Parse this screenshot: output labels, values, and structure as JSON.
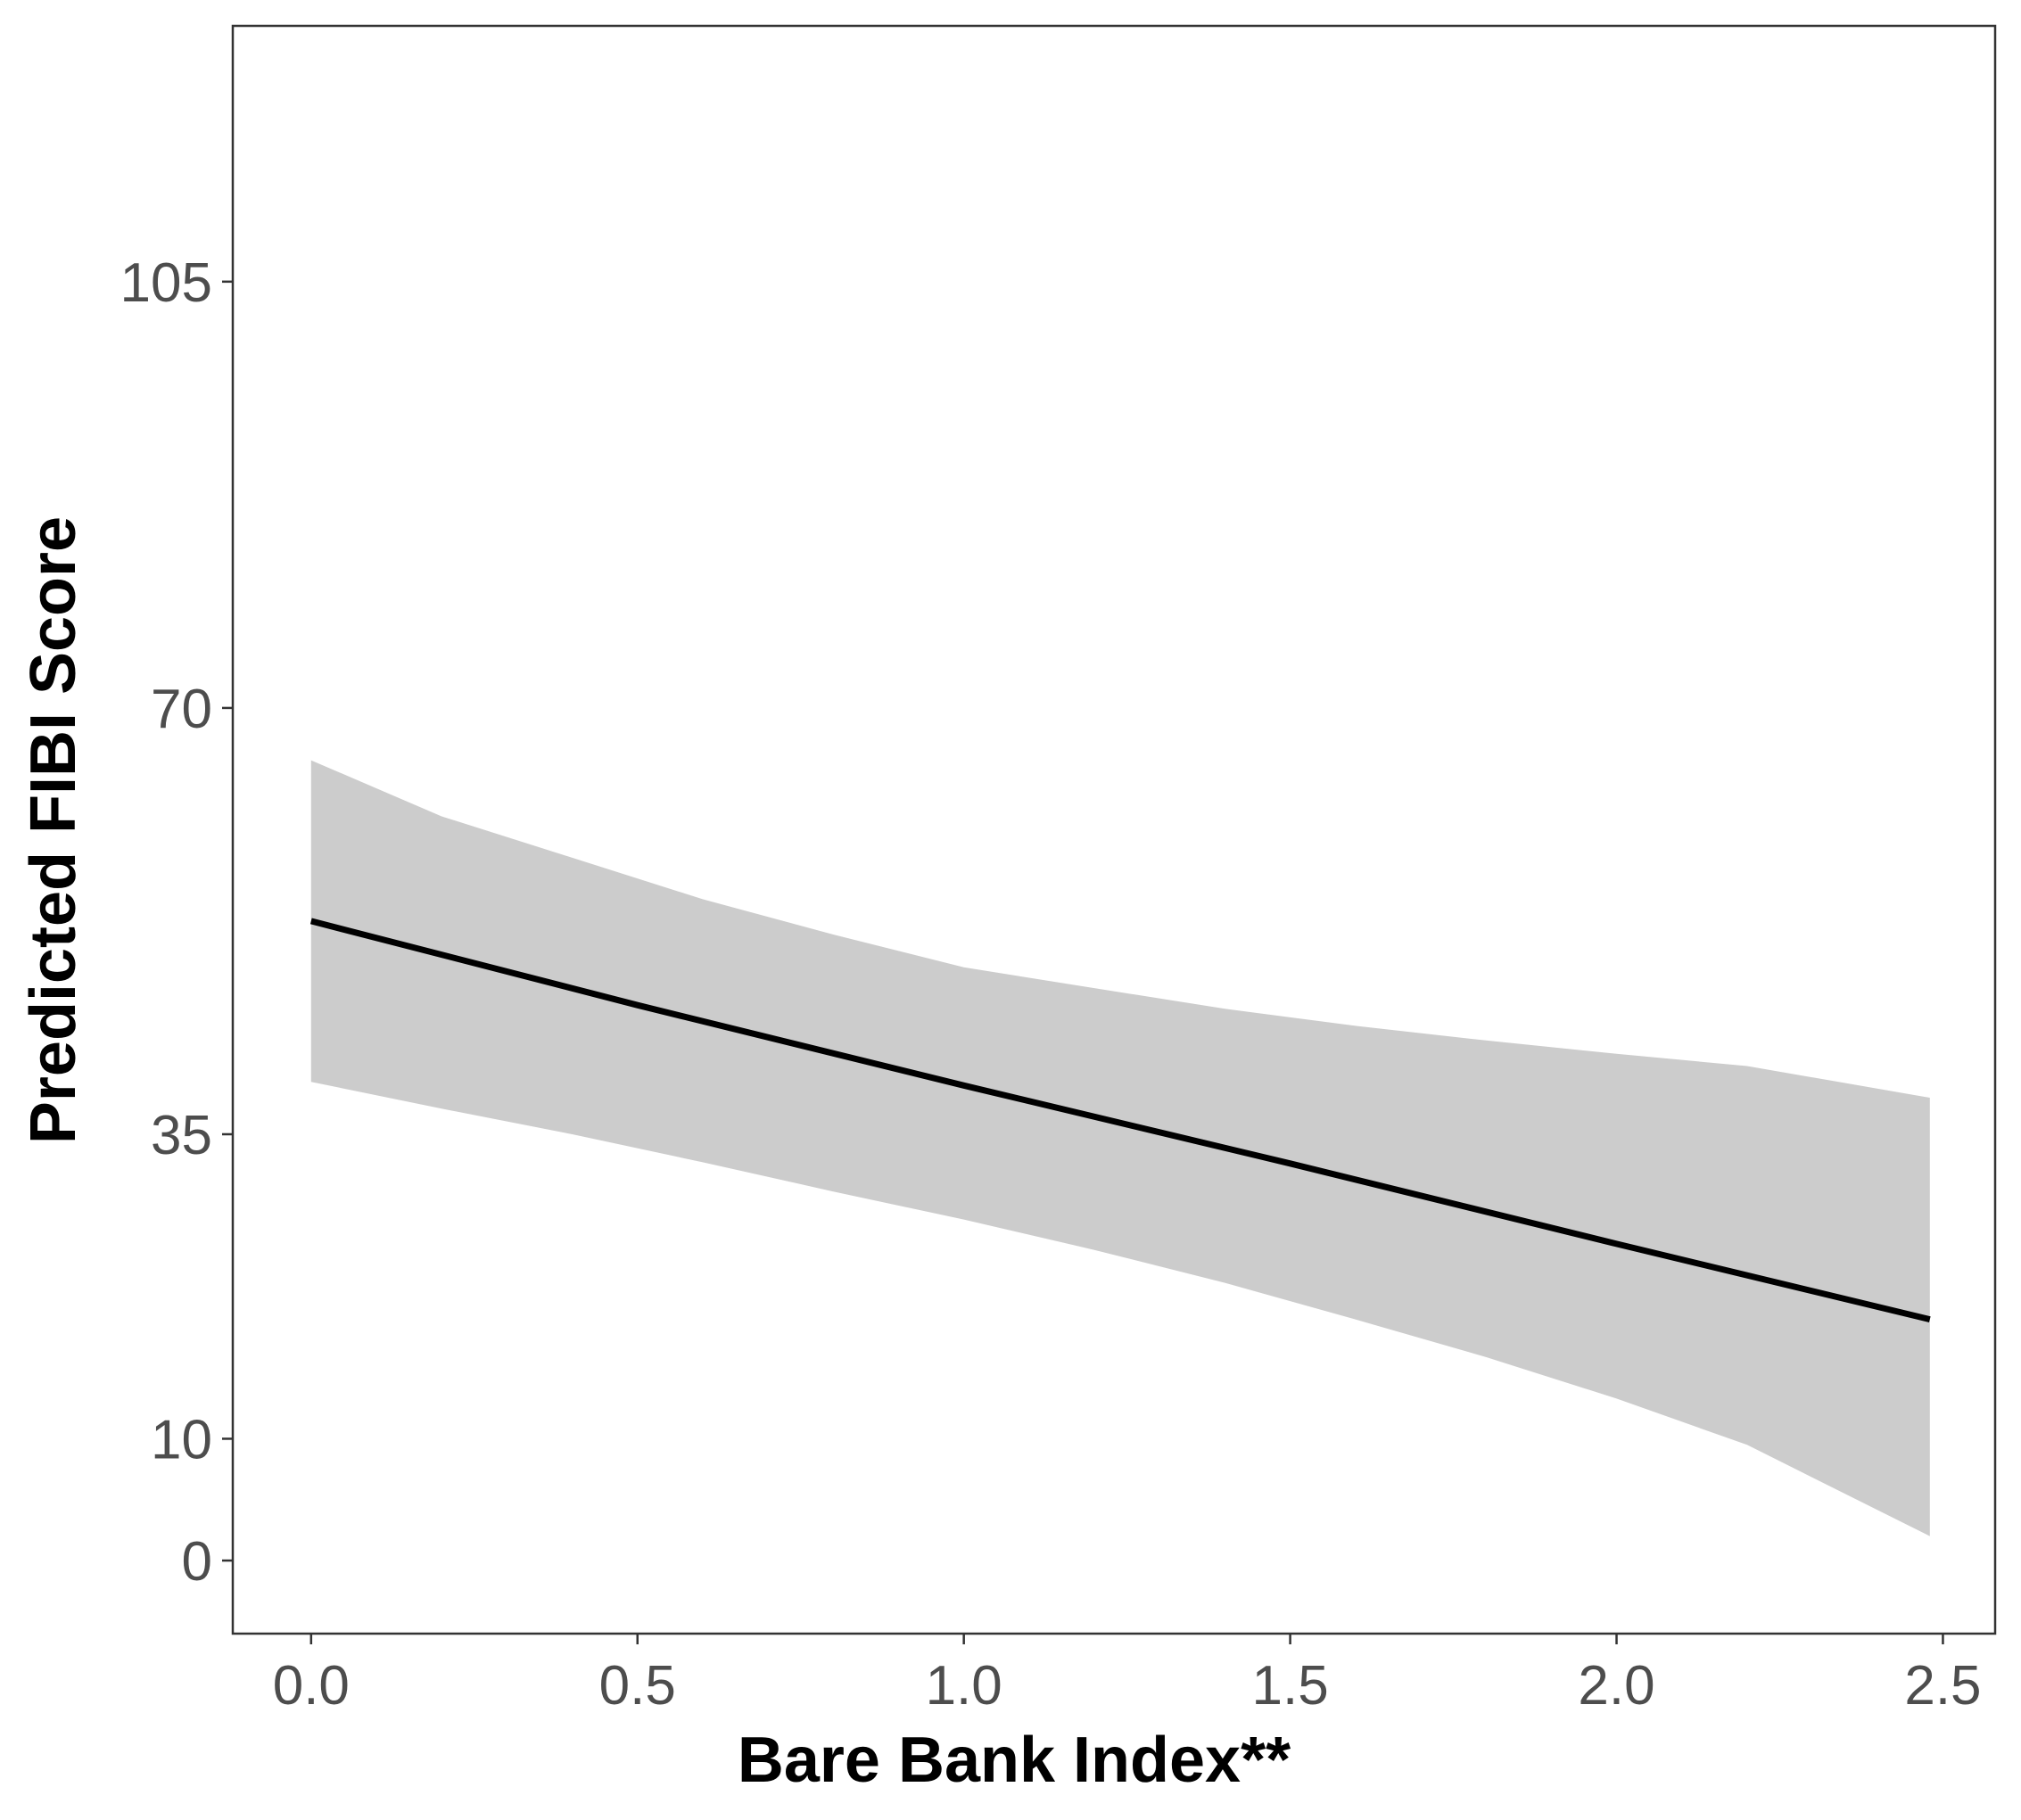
{
  "chart_data": {
    "type": "line",
    "title": "",
    "xlabel": "Bare Bank Index**",
    "ylabel": "Predicted FIBI Score",
    "xlim": [
      -0.12,
      2.58
    ],
    "ylim": [
      -6,
      126
    ],
    "x_ticks": [
      0.0,
      0.5,
      1.0,
      1.5,
      2.0,
      2.5
    ],
    "x_tick_labels": [
      "0.0",
      "0.5",
      "1.0",
      "1.5",
      "2.0",
      "2.5"
    ],
    "y_ticks": [
      0,
      10,
      35,
      70,
      105
    ],
    "y_tick_labels": [
      "0",
      "10",
      "35",
      "70",
      "105"
    ],
    "grid": false,
    "series": [
      {
        "role": "fit",
        "x": [
          0.0,
          0.5,
          1.0,
          1.5,
          2.0,
          2.48
        ],
        "y": [
          52.5,
          45.6,
          39.0,
          32.6,
          26.0,
          19.8
        ],
        "color": "#000000"
      }
    ],
    "band": {
      "role": "confidence-interval",
      "x": [
        0.0,
        0.2,
        0.4,
        0.6,
        0.8,
        1.0,
        1.2,
        1.4,
        1.6,
        1.8,
        2.0,
        2.2,
        2.48
      ],
      "lower": [
        39.3,
        37.1,
        35.0,
        32.7,
        30.3,
        28.0,
        25.5,
        22.8,
        19.8,
        16.7,
        13.3,
        9.5,
        2.0
      ],
      "upper": [
        65.7,
        61.1,
        57.7,
        54.3,
        51.4,
        48.7,
        47.0,
        45.3,
        43.9,
        42.7,
        41.6,
        40.6,
        38.0
      ],
      "color": "#cccccc"
    }
  }
}
